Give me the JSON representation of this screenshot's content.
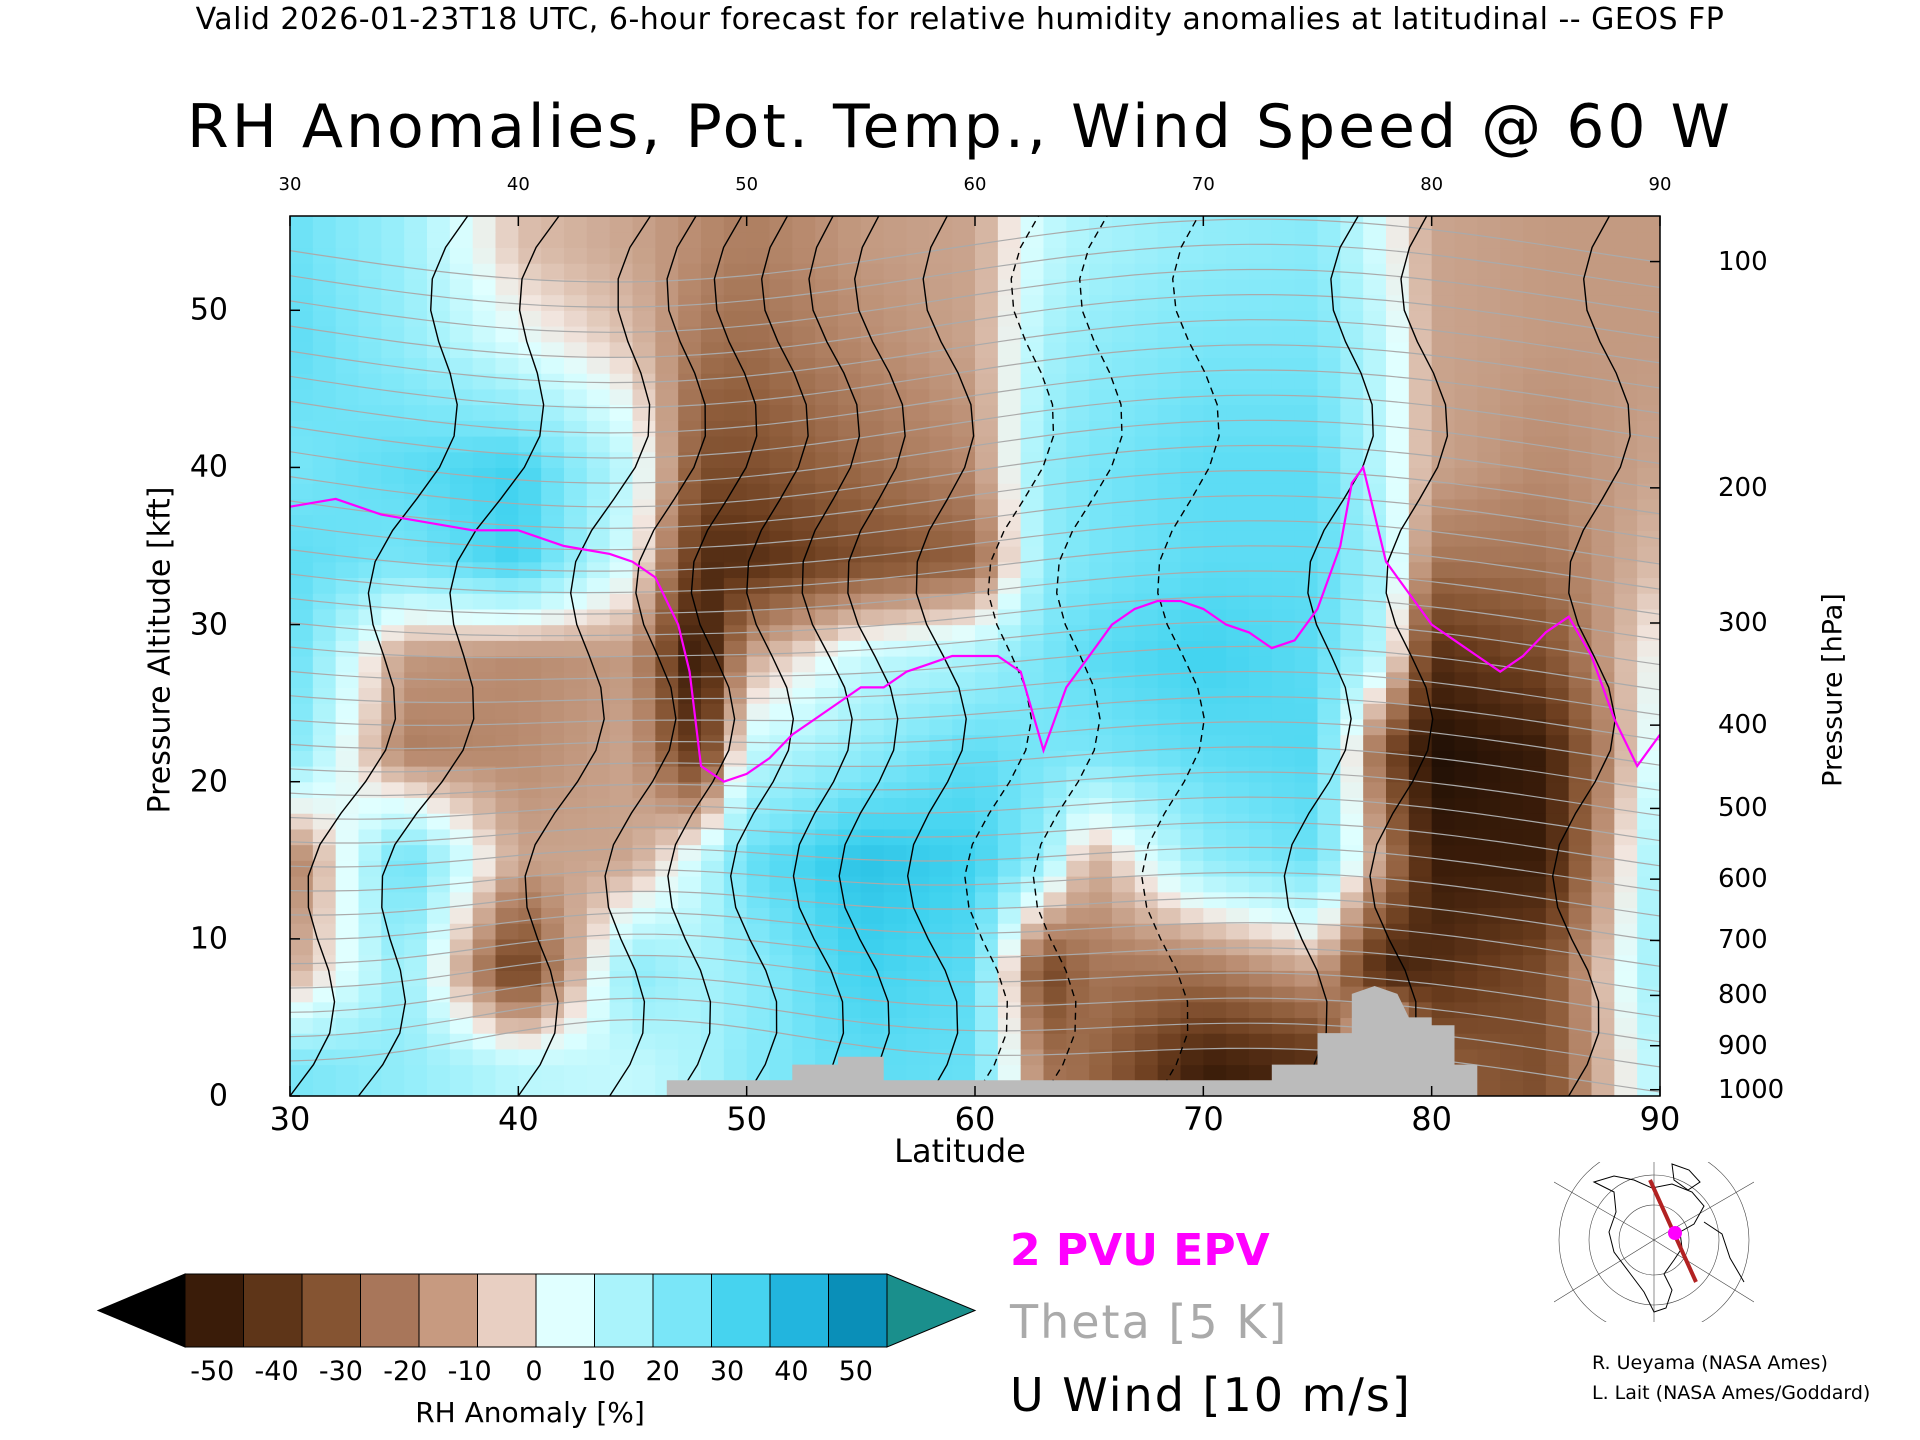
{
  "header": "Valid 2026-01-23T18 UTC, 6-hour forecast for relative humidity anomalies at latitudinal -- GEOS FP",
  "chart_data": {
    "type": "heatmap",
    "title": "RH Anomalies, Pot. Temp., Wind Speed @ 60 W",
    "xlabel": "Latitude",
    "ylabel": "Pressure Altitude [kft]",
    "ylabel_right": "Pressure [hPa]",
    "xlim": [
      30,
      90
    ],
    "ylim": [
      0,
      56
    ],
    "x_ticks_bottom": [
      "30",
      "40",
      "50",
      "60",
      "70",
      "80",
      "90"
    ],
    "x_ticks_top": [
      "30",
      "40",
      "50",
      "60",
      "70",
      "80",
      "90"
    ],
    "y_ticks_left": [
      "0",
      "10",
      "20",
      "30",
      "40",
      "50"
    ],
    "y_ticks_right": [
      {
        "label": "100",
        "kft": 53.1
      },
      {
        "label": "200",
        "kft": 38.7
      },
      {
        "label": "300",
        "kft": 30.1
      },
      {
        "label": "400",
        "kft": 23.6
      },
      {
        "label": "500",
        "kft": 18.3
      },
      {
        "label": "600",
        "kft": 13.8
      },
      {
        "label": "700",
        "kft": 9.9
      },
      {
        "label": "800",
        "kft": 6.4
      },
      {
        "label": "900",
        "kft": 3.2
      },
      {
        "label": "1000",
        "kft": 0.4
      }
    ],
    "colorbar": {
      "label": "RH Anomaly [%]",
      "ticks": [
        "-50",
        "-40",
        "-30",
        "-20",
        "-10",
        "0",
        "10",
        "20",
        "30",
        "40",
        "50"
      ],
      "colors": [
        "#000000",
        "#3a1c09",
        "#5e3518",
        "#855432",
        "#a8765a",
        "#c79a80",
        "#e8cfc2",
        "#e0ffff",
        "#aaf3fb",
        "#7ae6f8",
        "#46d3ef",
        "#22b5de",
        "#0a8fb8",
        "#1a8f8c"
      ]
    },
    "rh_anomaly_grid": {
      "x": [
        30,
        35,
        40,
        45,
        48,
        50,
        55,
        60,
        63,
        65,
        70,
        75,
        78,
        80,
        85,
        90
      ],
      "y": [
        2,
        8,
        15,
        22,
        28,
        34,
        40,
        48,
        54
      ],
      "values": [
        [
          25,
          20,
          12,
          10,
          15,
          22,
          30,
          28,
          -20,
          -22,
          -45,
          -40,
          30,
          -25,
          -30,
          15
        ],
        [
          -10,
          20,
          -38,
          22,
          15,
          20,
          35,
          30,
          -35,
          -20,
          -20,
          -10,
          -45,
          -40,
          -30,
          20
        ],
        [
          -20,
          30,
          -10,
          -10,
          10,
          28,
          40,
          35,
          20,
          -10,
          20,
          28,
          -15,
          -45,
          -45,
          20
        ],
        [
          25,
          -18,
          -15,
          -10,
          -40,
          10,
          20,
          30,
          25,
          25,
          30,
          32,
          -30,
          -50,
          -45,
          10
        ],
        [
          30,
          -12,
          -15,
          -12,
          -50,
          -10,
          10,
          15,
          25,
          30,
          35,
          30,
          10,
          -40,
          -30,
          5
        ],
        [
          30,
          25,
          35,
          5,
          -40,
          -40,
          -30,
          -25,
          20,
          25,
          30,
          30,
          15,
          -20,
          -20,
          -5
        ],
        [
          25,
          30,
          35,
          10,
          -30,
          -30,
          -22,
          -15,
          20,
          25,
          30,
          30,
          10,
          -10,
          -15,
          -10
        ],
        [
          30,
          20,
          5,
          -5,
          -20,
          -22,
          -15,
          -10,
          15,
          20,
          25,
          25,
          10,
          -10,
          -12,
          -12
        ],
        [
          28,
          18,
          -5,
          -10,
          -15,
          -18,
          -12,
          -10,
          10,
          15,
          20,
          22,
          5,
          -10,
          -12,
          -12
        ]
      ]
    },
    "epv_2pvu": {
      "name": "2 PVU EPV",
      "color": "#ff00ff",
      "points": [
        [
          30,
          37.5
        ],
        [
          32,
          38
        ],
        [
          34,
          37
        ],
        [
          36,
          36.5
        ],
        [
          38,
          36
        ],
        [
          40,
          36
        ],
        [
          42,
          35
        ],
        [
          44,
          34.5
        ],
        [
          45,
          34
        ],
        [
          46,
          33
        ],
        [
          47,
          30
        ],
        [
          47.5,
          27
        ],
        [
          48,
          21
        ],
        [
          49,
          20
        ],
        [
          50,
          20.5
        ],
        [
          51,
          21.5
        ],
        [
          52,
          23
        ],
        [
          53,
          24
        ],
        [
          54,
          25
        ],
        [
          55,
          26
        ],
        [
          56,
          26
        ],
        [
          57,
          27
        ],
        [
          58,
          27.5
        ],
        [
          59,
          28
        ],
        [
          60,
          28
        ],
        [
          61,
          28
        ],
        [
          62,
          27
        ],
        [
          63,
          22
        ],
        [
          64,
          26
        ],
        [
          65,
          28
        ],
        [
          66,
          30
        ],
        [
          67,
          31
        ],
        [
          68,
          31.5
        ],
        [
          69,
          31.5
        ],
        [
          70,
          31
        ],
        [
          71,
          30
        ],
        [
          72,
          29.5
        ],
        [
          73,
          28.5
        ],
        [
          74,
          29
        ],
        [
          75,
          31
        ],
        [
          76,
          35
        ],
        [
          76.5,
          39
        ],
        [
          77,
          40
        ],
        [
          78,
          34
        ],
        [
          79,
          32
        ],
        [
          80,
          30
        ],
        [
          81,
          29
        ],
        [
          82,
          28
        ],
        [
          83,
          27
        ],
        [
          84,
          28
        ],
        [
          85,
          29.5
        ],
        [
          86,
          30.5
        ],
        [
          87,
          28
        ],
        [
          88,
          24
        ],
        [
          89,
          21
        ],
        [
          90,
          23
        ]
      ]
    },
    "theta": {
      "name": "Theta [5 K]",
      "color": "#aaaaaa",
      "interval": 5
    },
    "u_wind": {
      "name": "U Wind [10 m/s]",
      "color": "#000000",
      "interval": 10
    },
    "terrain": {
      "color": "#bbbbbb",
      "points": [
        [
          46.5,
          0
        ],
        [
          46.5,
          1
        ],
        [
          52,
          1
        ],
        [
          52,
          2
        ],
        [
          54,
          2
        ],
        [
          54,
          2.5
        ],
        [
          56,
          2.5
        ],
        [
          56,
          1
        ],
        [
          73,
          1
        ],
        [
          73,
          2
        ],
        [
          75,
          2
        ],
        [
          75,
          4
        ],
        [
          76.5,
          4
        ],
        [
          76.5,
          6.5
        ],
        [
          77.5,
          7
        ],
        [
          78.5,
          6.5
        ],
        [
          79,
          5
        ],
        [
          80,
          5
        ],
        [
          80,
          4.5
        ],
        [
          81,
          4.5
        ],
        [
          81,
          2
        ],
        [
          82,
          2
        ],
        [
          82,
          0
        ]
      ]
    }
  },
  "legend": {
    "epv": "2 PVU EPV",
    "theta": "Theta [5 K]",
    "uwind": "U Wind [10 m/s]"
  },
  "credits": {
    "line1": "R. Ueyama (NASA Ames)",
    "line2": "L. Lait (NASA Ames/Goddard)"
  }
}
